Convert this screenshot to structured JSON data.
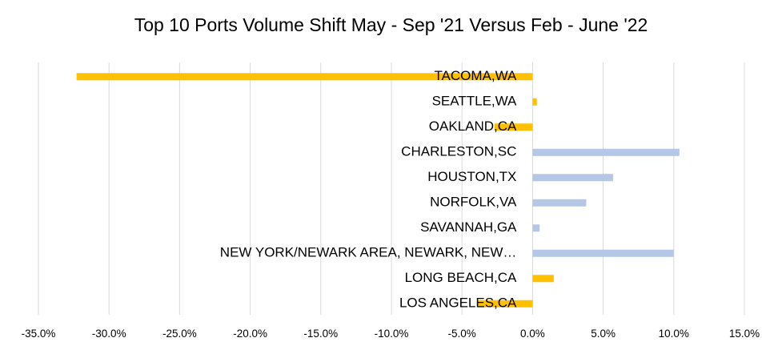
{
  "chart_data": {
    "type": "bar",
    "orientation": "horizontal",
    "title": "Top 10 Ports Volume Shift May - Sep '21 Versus Feb - June '22",
    "xlabel": "",
    "ylabel": "",
    "xlim": [
      -35,
      15
    ],
    "x_ticks": [
      "-35.0%",
      "-30.0%",
      "-25.0%",
      "-20.0%",
      "-15.0%",
      "-10.0%",
      "-5.0%",
      "0.0%",
      "5.0%",
      "10.0%",
      "15.0%"
    ],
    "grid": "vertical",
    "legend": "none",
    "categories": [
      "TACOMA,WA",
      "SEATTLE,WA",
      "OAKLAND,CA",
      "CHARLESTON,SC",
      "HOUSTON,TX",
      "NORFOLK,VA",
      "SAVANNAH,GA",
      "NEW YORK/NEWARK AREA, NEWARK, NEW…",
      "LONG BEACH,CA",
      "LOS ANGELES,CA"
    ],
    "values": [
      -32.3,
      0.3,
      -2.7,
      10.4,
      5.7,
      3.8,
      0.5,
      10.0,
      1.5,
      -3.9
    ],
    "colors": {
      "negative_or_west": "#FFC000",
      "east": "#B4C7E7",
      "grid": "#D9D9D9"
    },
    "bar_colors": [
      "#FFC000",
      "#FFC000",
      "#FFC000",
      "#B4C7E7",
      "#B4C7E7",
      "#B4C7E7",
      "#B4C7E7",
      "#B4C7E7",
      "#FFC000",
      "#FFC000"
    ]
  }
}
